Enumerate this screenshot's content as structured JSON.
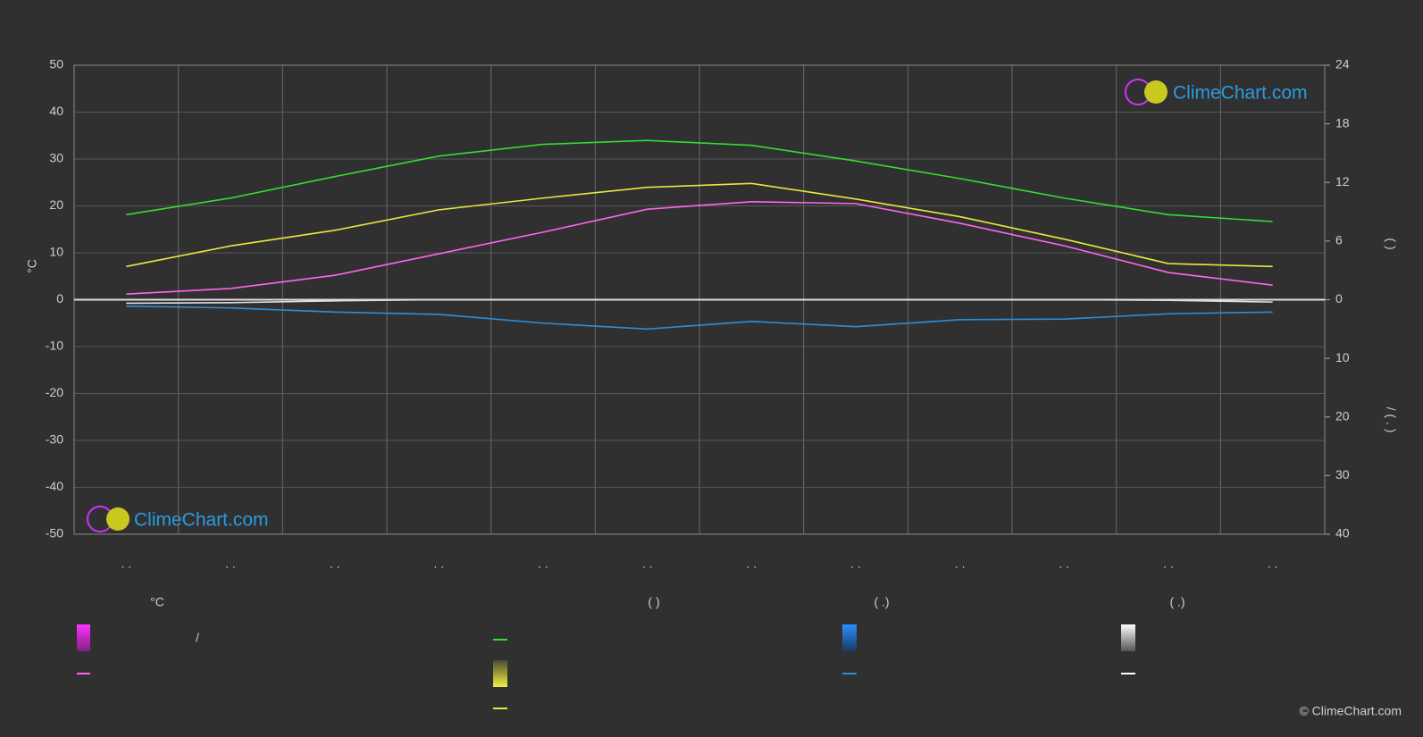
{
  "chart_data": {
    "type": "line",
    "categories": [
      ". .",
      ". .",
      ". .",
      ". .",
      ". .",
      ". .",
      ". .",
      ". .",
      ". .",
      ". .",
      ". .",
      ". ."
    ],
    "ylabel": "°C",
    "ylim": [
      -50,
      50
    ],
    "yticks": [
      -50,
      -40,
      -30,
      -20,
      -10,
      0,
      10,
      20,
      30,
      40,
      50
    ],
    "y2lim": [
      0,
      24
    ],
    "y2ticks": [
      0,
      6,
      12,
      18,
      24
    ],
    "y2label": "(              )",
    "y3lim": [
      0,
      40
    ],
    "y3ticks": [
      10,
      20,
      30,
      40
    ],
    "y3label": "/       (  .  )",
    "grid": true,
    "series": [
      {
        "color": "#33dd33",
        "axis": "y2",
        "values": [
          8.7,
          10.4,
          12.6,
          14.7,
          15.9,
          16.3,
          15.8,
          14.2,
          12.4,
          10.4,
          8.7,
          8.0
        ]
      },
      {
        "color": "#e8e840",
        "axis": "y2",
        "values": [
          3.4,
          5.5,
          7.1,
          9.2,
          10.4,
          11.5,
          11.9,
          10.3,
          8.5,
          6.2,
          3.7,
          3.4
        ]
      },
      {
        "color": "#ff66ee",
        "axis": "y",
        "values": [
          1.2,
          2.4,
          5.2,
          9.8,
          14.4,
          19.3,
          20.9,
          20.5,
          16.3,
          11.5,
          5.8,
          3.1
        ]
      },
      {
        "color": "#2a8fdd",
        "axis": "y3",
        "values": [
          1.1,
          1.4,
          2.1,
          2.5,
          4.0,
          5.0,
          3.7,
          4.6,
          3.4,
          3.3,
          2.4,
          2.1
        ]
      },
      {
        "color": "#dddddd",
        "axis": "y3",
        "values": [
          0.6,
          0.5,
          0.2,
          0,
          0,
          0,
          0,
          0,
          0,
          0,
          0.1,
          0.4
        ]
      }
    ],
    "legend_headers": [
      "°C",
      "(           )",
      "(   .)",
      "(   .)"
    ],
    "legend_slash": "/",
    "logo": "ClimeChart.com",
    "copyright": "© ClimeChart.com"
  }
}
